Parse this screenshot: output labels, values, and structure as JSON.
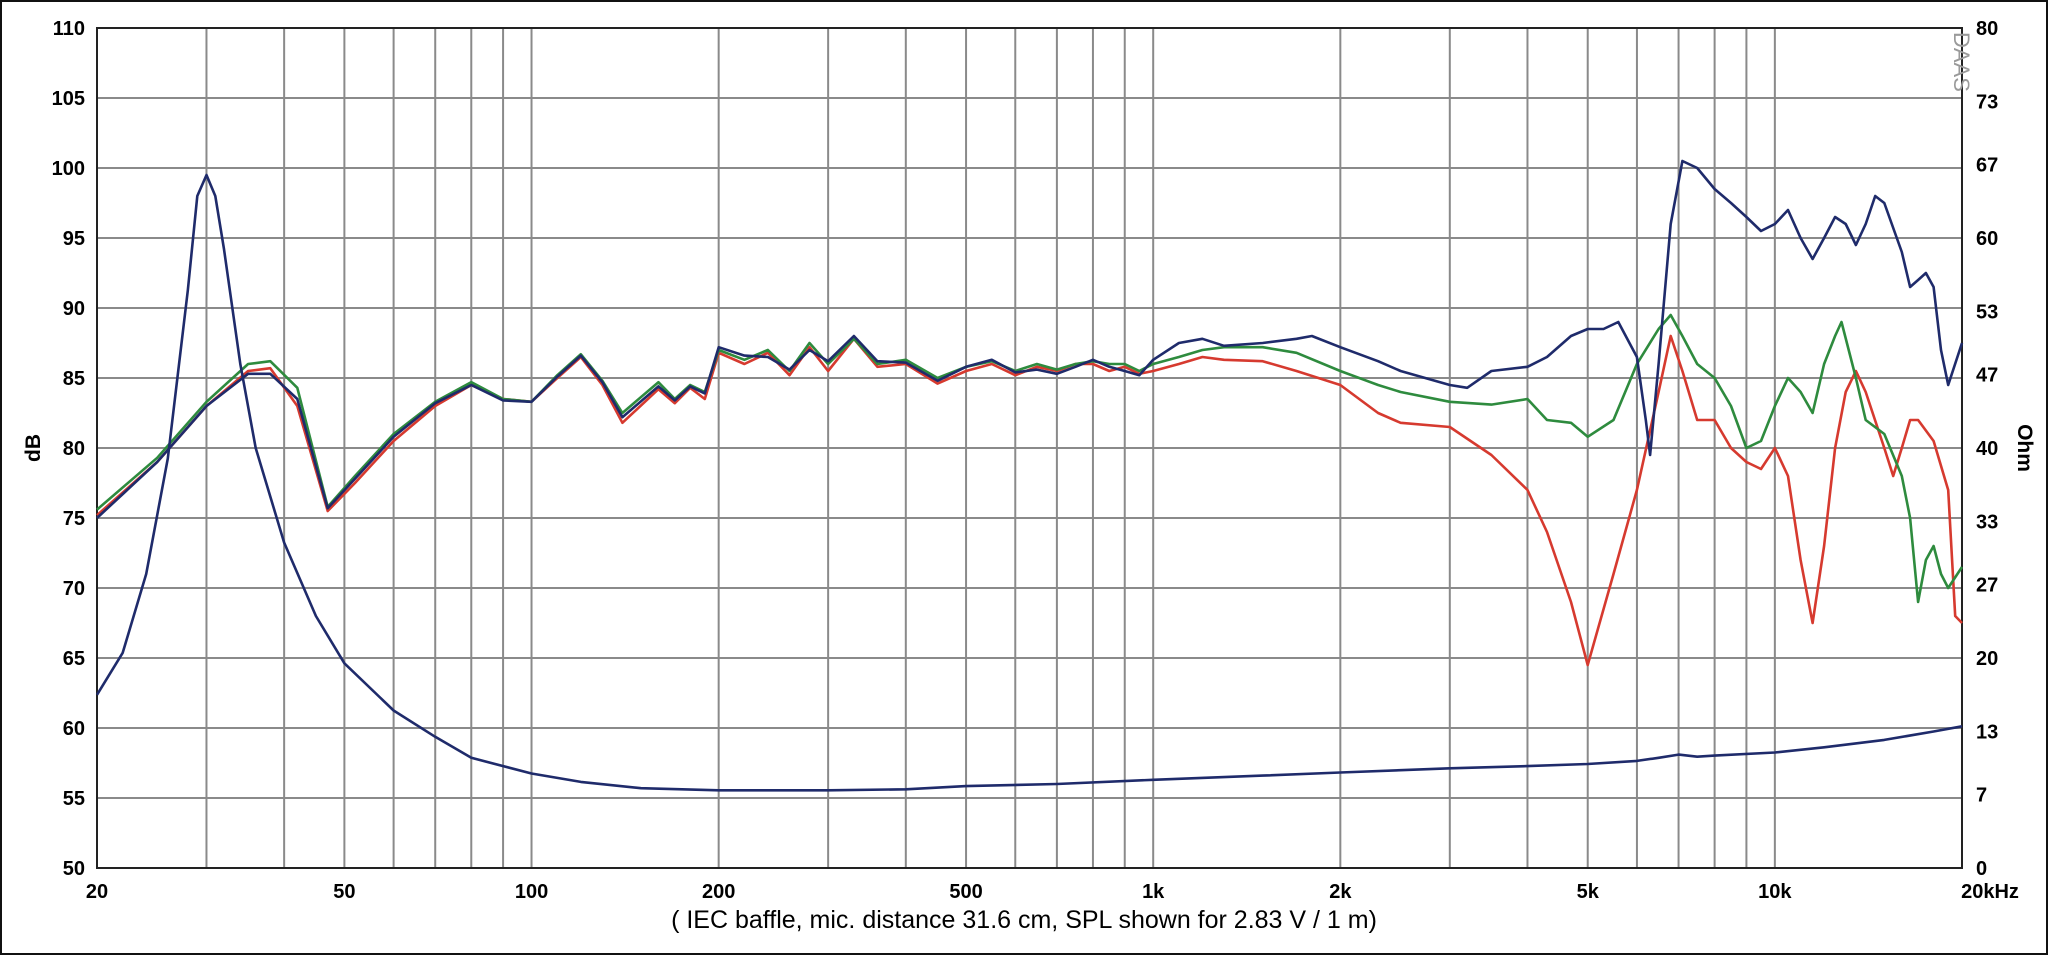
{
  "caption": "( IEC baffle, mic. distance 31.6 cm, SPL shown for 2.83 V / 1 m)",
  "logo_text": "DAAS",
  "chart_data": {
    "type": "line",
    "xscale": "log",
    "xlim": [
      20,
      20000
    ],
    "ylim": [
      50,
      110
    ],
    "y2lim": [
      0,
      80
    ],
    "ylabel": "dB",
    "y2label": "Ohm",
    "xticks": [
      {
        "value": 20,
        "label": "20"
      },
      {
        "value": 50,
        "label": "50"
      },
      {
        "value": 100,
        "label": "100"
      },
      {
        "value": 200,
        "label": "200"
      },
      {
        "value": 500,
        "label": "500"
      },
      {
        "value": 1000,
        "label": "1k"
      },
      {
        "value": 2000,
        "label": "2k"
      },
      {
        "value": 5000,
        "label": "5k"
      },
      {
        "value": 10000,
        "label": "10k"
      },
      {
        "value": 20000,
        "label": "20kHz"
      }
    ],
    "yticks": [
      50,
      55,
      60,
      65,
      70,
      75,
      80,
      85,
      90,
      95,
      100,
      105,
      110
    ],
    "y2ticks": [
      0,
      7,
      13,
      20,
      27,
      33,
      40,
      47,
      53,
      60,
      67,
      73,
      80
    ],
    "grid": true,
    "series": [
      {
        "color": "#d63a2f",
        "axis": "left",
        "points": [
          [
            20,
            75.2
          ],
          [
            25,
            79
          ],
          [
            30,
            83
          ],
          [
            35,
            85.5
          ],
          [
            38,
            85.7
          ],
          [
            42,
            83
          ],
          [
            47,
            75.5
          ],
          [
            52,
            77.5
          ],
          [
            60,
            80.5
          ],
          [
            70,
            83
          ],
          [
            80,
            84.5
          ],
          [
            90,
            83.5
          ],
          [
            100,
            83.3
          ],
          [
            110,
            85
          ],
          [
            120,
            86.5
          ],
          [
            130,
            84.5
          ],
          [
            140,
            81.8
          ],
          [
            160,
            84.2
          ],
          [
            170,
            83.2
          ],
          [
            180,
            84.3
          ],
          [
            190,
            83.5
          ],
          [
            200,
            86.8
          ],
          [
            220,
            86
          ],
          [
            240,
            86.8
          ],
          [
            260,
            85.2
          ],
          [
            280,
            87.2
          ],
          [
            300,
            85.5
          ],
          [
            330,
            87.8
          ],
          [
            360,
            85.8
          ],
          [
            400,
            86
          ],
          [
            450,
            84.6
          ],
          [
            500,
            85.5
          ],
          [
            550,
            86
          ],
          [
            600,
            85.2
          ],
          [
            650,
            85.8
          ],
          [
            700,
            85.5
          ],
          [
            750,
            86
          ],
          [
            800,
            86
          ],
          [
            850,
            85.5
          ],
          [
            900,
            85.8
          ],
          [
            950,
            85.3
          ],
          [
            1000,
            85.5
          ],
          [
            1100,
            86
          ],
          [
            1200,
            86.5
          ],
          [
            1300,
            86.3
          ],
          [
            1500,
            86.2
          ],
          [
            1700,
            85.5
          ],
          [
            2000,
            84.5
          ],
          [
            2300,
            82.5
          ],
          [
            2500,
            81.8
          ],
          [
            3000,
            81.5
          ],
          [
            3500,
            79.5
          ],
          [
            4000,
            77
          ],
          [
            4300,
            74
          ],
          [
            4700,
            69
          ],
          [
            5000,
            64.5
          ],
          [
            5500,
            71
          ],
          [
            6000,
            77
          ],
          [
            6500,
            84
          ],
          [
            6800,
            88
          ],
          [
            7100,
            85.5
          ],
          [
            7500,
            82
          ],
          [
            8000,
            82
          ],
          [
            8500,
            80
          ],
          [
            9000,
            79
          ],
          [
            9500,
            78.5
          ],
          [
            10000,
            80
          ],
          [
            10500,
            78
          ],
          [
            11000,
            72
          ],
          [
            11500,
            67.5
          ],
          [
            12000,
            73
          ],
          [
            12500,
            80
          ],
          [
            13000,
            84
          ],
          [
            13500,
            85.5
          ],
          [
            14000,
            84
          ],
          [
            15000,
            80
          ],
          [
            15500,
            78
          ],
          [
            16000,
            80
          ],
          [
            16500,
            82
          ],
          [
            17000,
            82
          ],
          [
            18000,
            80.5
          ],
          [
            19000,
            77
          ],
          [
            19500,
            68
          ],
          [
            20000,
            67.5
          ]
        ]
      },
      {
        "color": "#2e8b3e",
        "axis": "left",
        "points": [
          [
            20,
            75.6
          ],
          [
            25,
            79.3
          ],
          [
            30,
            83.3
          ],
          [
            35,
            86
          ],
          [
            38,
            86.2
          ],
          [
            42,
            84.3
          ],
          [
            47,
            75.8
          ],
          [
            52,
            78
          ],
          [
            60,
            81
          ],
          [
            70,
            83.3
          ],
          [
            80,
            84.7
          ],
          [
            90,
            83.5
          ],
          [
            100,
            83.3
          ],
          [
            110,
            85.2
          ],
          [
            120,
            86.7
          ],
          [
            130,
            84.8
          ],
          [
            140,
            82.5
          ],
          [
            160,
            84.7
          ],
          [
            170,
            83.5
          ],
          [
            180,
            84.5
          ],
          [
            190,
            84
          ],
          [
            200,
            87
          ],
          [
            220,
            86.3
          ],
          [
            240,
            87
          ],
          [
            260,
            85.5
          ],
          [
            280,
            87.5
          ],
          [
            300,
            86
          ],
          [
            330,
            87.8
          ],
          [
            360,
            86
          ],
          [
            400,
            86.3
          ],
          [
            450,
            85
          ],
          [
            500,
            85.8
          ],
          [
            550,
            86.2
          ],
          [
            600,
            85.5
          ],
          [
            650,
            86
          ],
          [
            700,
            85.6
          ],
          [
            750,
            86
          ],
          [
            800,
            86.2
          ],
          [
            850,
            86
          ],
          [
            900,
            86
          ],
          [
            950,
            85.5
          ],
          [
            1000,
            86
          ],
          [
            1100,
            86.5
          ],
          [
            1200,
            87
          ],
          [
            1300,
            87.2
          ],
          [
            1500,
            87.2
          ],
          [
            1700,
            86.8
          ],
          [
            2000,
            85.5
          ],
          [
            2300,
            84.5
          ],
          [
            2500,
            84
          ],
          [
            3000,
            83.3
          ],
          [
            3500,
            83.1
          ],
          [
            4000,
            83.5
          ],
          [
            4300,
            82
          ],
          [
            4700,
            81.8
          ],
          [
            5000,
            80.8
          ],
          [
            5500,
            82
          ],
          [
            6000,
            86
          ],
          [
            6500,
            88.5
          ],
          [
            6800,
            89.5
          ],
          [
            7100,
            88
          ],
          [
            7500,
            86
          ],
          [
            8000,
            85
          ],
          [
            8500,
            83
          ],
          [
            9000,
            80
          ],
          [
            9500,
            80.5
          ],
          [
            10000,
            83
          ],
          [
            10500,
            85
          ],
          [
            11000,
            84
          ],
          [
            11500,
            82.5
          ],
          [
            12000,
            86
          ],
          [
            12500,
            88
          ],
          [
            12800,
            89
          ],
          [
            13500,
            85
          ],
          [
            14000,
            82
          ],
          [
            15000,
            81
          ],
          [
            16000,
            78
          ],
          [
            16500,
            75
          ],
          [
            17000,
            69
          ],
          [
            17500,
            72
          ],
          [
            18000,
            73
          ],
          [
            18500,
            71
          ],
          [
            19000,
            70
          ],
          [
            20000,
            71.5
          ]
        ]
      },
      {
        "color": "#1f2b6b",
        "axis": "left",
        "points": [
          [
            20,
            75
          ],
          [
            25,
            79
          ],
          [
            30,
            83
          ],
          [
            35,
            85.3
          ],
          [
            38,
            85.3
          ],
          [
            42,
            83.5
          ],
          [
            47,
            75.7
          ],
          [
            52,
            77.8
          ],
          [
            60,
            80.8
          ],
          [
            70,
            83.2
          ],
          [
            80,
            84.5
          ],
          [
            90,
            83.4
          ],
          [
            100,
            83.3
          ],
          [
            110,
            85.1
          ],
          [
            120,
            86.6
          ],
          [
            130,
            84.7
          ],
          [
            140,
            82.2
          ],
          [
            160,
            84.4
          ],
          [
            170,
            83.4
          ],
          [
            180,
            84.4
          ],
          [
            190,
            83.9
          ],
          [
            200,
            87.2
          ],
          [
            220,
            86.6
          ],
          [
            240,
            86.5
          ],
          [
            260,
            85.6
          ],
          [
            280,
            87
          ],
          [
            300,
            86.2
          ],
          [
            330,
            88
          ],
          [
            360,
            86.2
          ],
          [
            400,
            86.1
          ],
          [
            450,
            84.8
          ],
          [
            500,
            85.8
          ],
          [
            550,
            86.3
          ],
          [
            600,
            85.4
          ],
          [
            650,
            85.6
          ],
          [
            700,
            85.3
          ],
          [
            750,
            85.8
          ],
          [
            800,
            86.3
          ],
          [
            850,
            85.8
          ],
          [
            900,
            85.5
          ],
          [
            950,
            85.2
          ],
          [
            1000,
            86.3
          ],
          [
            1100,
            87.5
          ],
          [
            1200,
            87.8
          ],
          [
            1300,
            87.3
          ],
          [
            1500,
            87.5
          ],
          [
            1700,
            87.8
          ],
          [
            1800,
            88
          ],
          [
            2000,
            87.2
          ],
          [
            2300,
            86.2
          ],
          [
            2500,
            85.5
          ],
          [
            3000,
            84.5
          ],
          [
            3200,
            84.3
          ],
          [
            3500,
            85.5
          ],
          [
            4000,
            85.8
          ],
          [
            4300,
            86.5
          ],
          [
            4700,
            88
          ],
          [
            5000,
            88.5
          ],
          [
            5300,
            88.5
          ],
          [
            5600,
            89
          ],
          [
            6000,
            86.5
          ],
          [
            6200,
            82
          ],
          [
            6300,
            79.5
          ],
          [
            6500,
            86
          ],
          [
            6800,
            96
          ],
          [
            7100,
            100.5
          ],
          [
            7500,
            100
          ],
          [
            8000,
            98.5
          ],
          [
            8500,
            97.5
          ],
          [
            9000,
            96.5
          ],
          [
            9500,
            95.5
          ],
          [
            10000,
            96
          ],
          [
            10500,
            97
          ],
          [
            11000,
            95
          ],
          [
            11500,
            93.5
          ],
          [
            12000,
            95
          ],
          [
            12500,
            96.5
          ],
          [
            13000,
            96
          ],
          [
            13500,
            94.5
          ],
          [
            14000,
            96
          ],
          [
            14500,
            98
          ],
          [
            15000,
            97.5
          ],
          [
            16000,
            94
          ],
          [
            16500,
            91.5
          ],
          [
            17000,
            92
          ],
          [
            17500,
            92.5
          ],
          [
            18000,
            91.5
          ],
          [
            18500,
            87
          ],
          [
            19000,
            84.5
          ],
          [
            20000,
            87.5
          ]
        ]
      },
      {
        "color": "#1f2b6b",
        "axis": "right",
        "points": [
          [
            20,
            16.5
          ],
          [
            22,
            20.5
          ],
          [
            24,
            28
          ],
          [
            26,
            39
          ],
          [
            28,
            55
          ],
          [
            29,
            64
          ],
          [
            30,
            66
          ],
          [
            31,
            64
          ],
          [
            32,
            59
          ],
          [
            34,
            48
          ],
          [
            36,
            40
          ],
          [
            40,
            31
          ],
          [
            45,
            24
          ],
          [
            50,
            19.5
          ],
          [
            60,
            15
          ],
          [
            70,
            12.5
          ],
          [
            80,
            10.5
          ],
          [
            100,
            9
          ],
          [
            120,
            8.2
          ],
          [
            150,
            7.6
          ],
          [
            200,
            7.4
          ],
          [
            300,
            7.4
          ],
          [
            400,
            7.5
          ],
          [
            500,
            7.8
          ],
          [
            700,
            8
          ],
          [
            1000,
            8.4
          ],
          [
            1500,
            8.8
          ],
          [
            2000,
            9.1
          ],
          [
            3000,
            9.5
          ],
          [
            4000,
            9.7
          ],
          [
            5000,
            9.9
          ],
          [
            6000,
            10.2
          ],
          [
            6500,
            10.5
          ],
          [
            7000,
            10.8
          ],
          [
            7500,
            10.6
          ],
          [
            8000,
            10.7
          ],
          [
            10000,
            11
          ],
          [
            12000,
            11.5
          ],
          [
            15000,
            12.2
          ],
          [
            18000,
            13
          ],
          [
            20000,
            13.5
          ]
        ]
      }
    ]
  }
}
